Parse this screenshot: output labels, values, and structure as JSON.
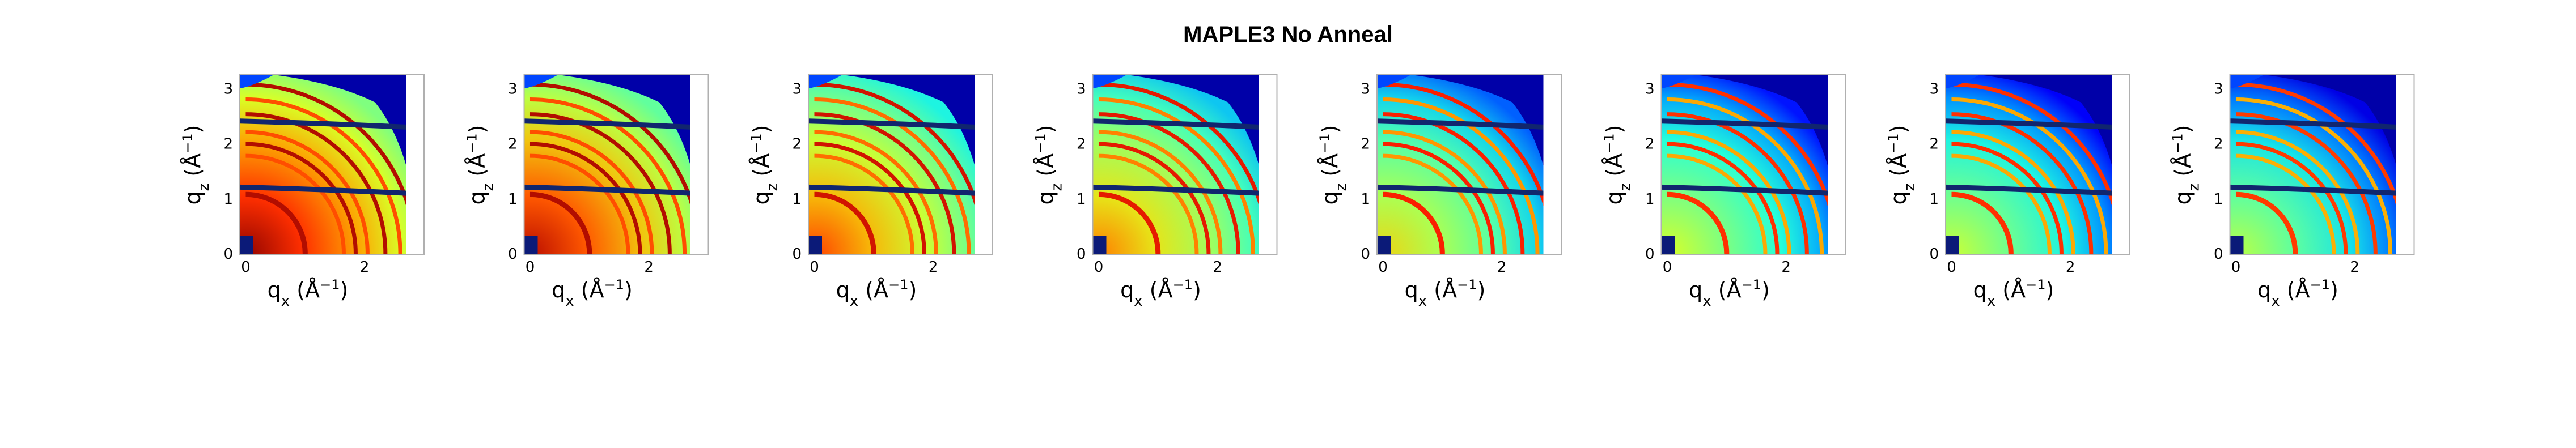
{
  "figure": {
    "title": "MAPLE3 No Anneal"
  },
  "chart_data": {
    "type": "heatmap",
    "title": "MAPLE3 No Anneal",
    "panel_count": 8,
    "xlabel": "q_x (Å^-1)",
    "ylabel": "q_z (Å^-1)",
    "xlim": [
      -0.1,
      3.0
    ],
    "ylim": [
      -0.02,
      3.25
    ],
    "xticks": [
      0,
      2
    ],
    "yticks": [
      0,
      1,
      2,
      3
    ],
    "data_extent_qx_max": 2.7,
    "horizon_bands_qz": [
      1.15,
      2.35
    ],
    "ring_radii_q": [
      1.0,
      1.65,
      1.85,
      2.05,
      2.35,
      2.6,
      2.85
    ],
    "colormap": "jet",
    "colormap_stops": [
      "#00007f",
      "#0000ff",
      "#00a0ff",
      "#22ffdd",
      "#7fff7f",
      "#ddff22",
      "#ffa000",
      "#ff2000",
      "#7f0000"
    ],
    "panels": [
      {
        "index": 1,
        "background_level": 0.8,
        "ring_level": 0.95
      },
      {
        "index": 2,
        "background_level": 0.76,
        "ring_level": 0.95
      },
      {
        "index": 3,
        "background_level": 0.66,
        "ring_level": 0.92
      },
      {
        "index": 4,
        "background_level": 0.6,
        "ring_level": 0.9
      },
      {
        "index": 5,
        "background_level": 0.5,
        "ring_level": 0.88
      },
      {
        "index": 6,
        "background_level": 0.44,
        "ring_level": 0.86
      },
      {
        "index": 7,
        "background_level": 0.42,
        "ring_level": 0.86
      },
      {
        "index": 8,
        "background_level": 0.4,
        "ring_level": 0.85
      }
    ]
  }
}
